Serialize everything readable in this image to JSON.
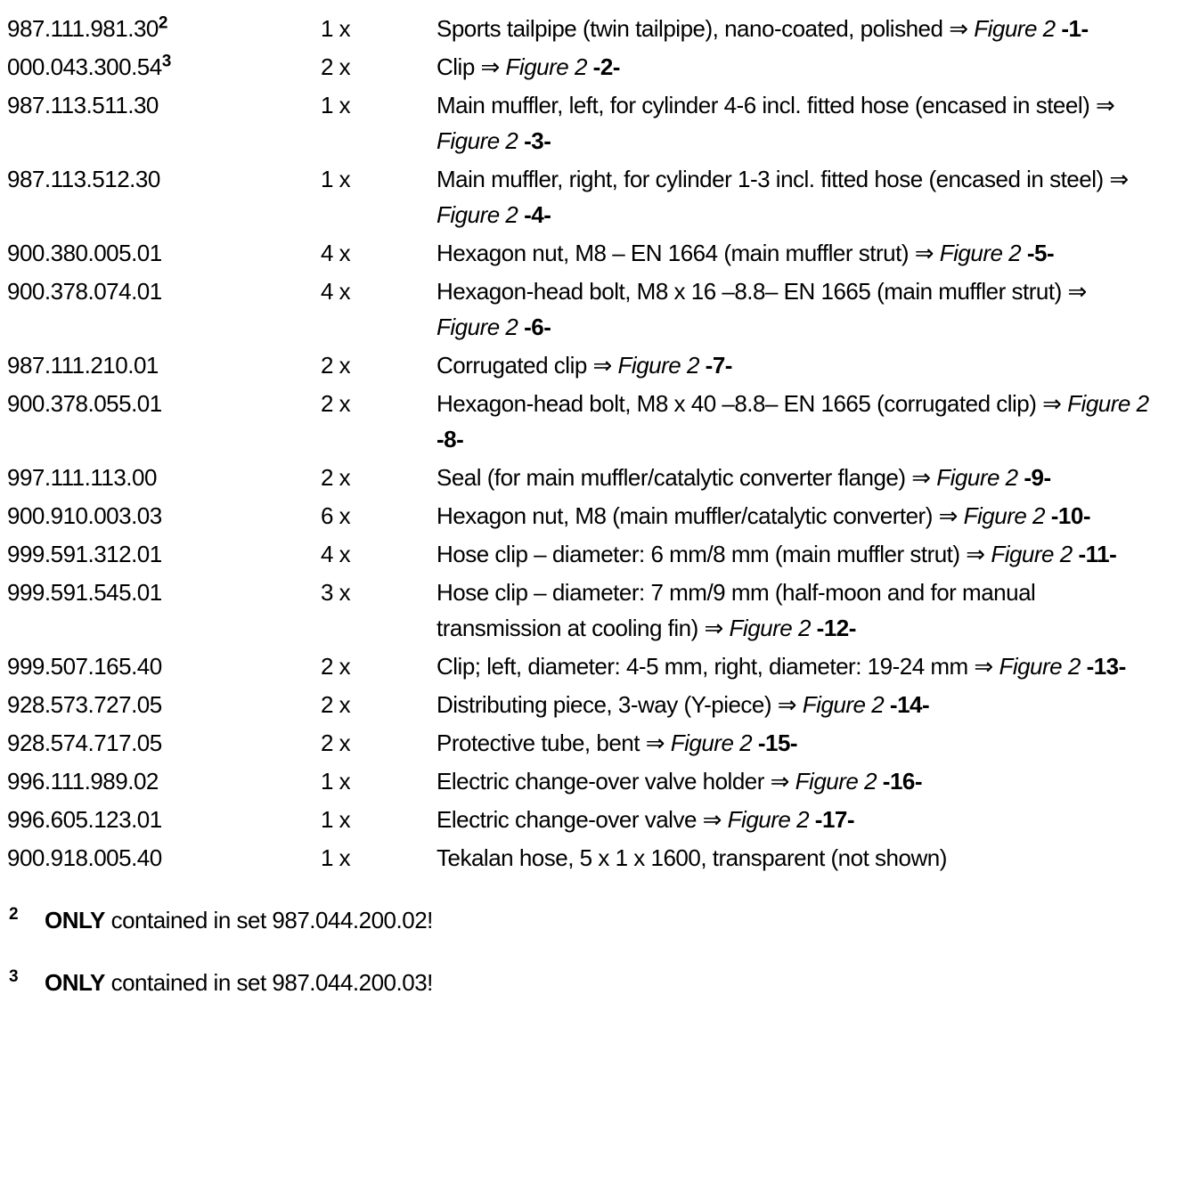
{
  "table": {
    "rows": [
      {
        "part": "987.111.981.30",
        "sup": "2",
        "qty": "1 x",
        "desc": "Sports tailpipe (twin tailpipe), nano-coated, polished",
        "arrow": " ⇒ ",
        "figure": "Figure 2",
        "item": "-1-"
      },
      {
        "part": "000.043.300.54",
        "sup": "3",
        "qty": "2 x",
        "desc": "Clip",
        "arrow": " ⇒ ",
        "figure": "Figure 2",
        "item": "-2-"
      },
      {
        "part": "987.113.511.30",
        "qty": "1 x",
        "desc": "Main muffler, left, for cylinder 4-6 incl. fitted hose (encased in steel)",
        "arrow": " ⇒ ",
        "figure": "Figure 2",
        "item": "-3-"
      },
      {
        "part": "987.113.512.30",
        "qty": "1 x",
        "desc": "Main muffler, right, for cylinder 1-3 incl. fitted hose (encased in steel)",
        "arrow": " ⇒ ",
        "figure": "Figure 2",
        "item": "-4-"
      },
      {
        "part": "900.380.005.01",
        "qty": "4 x",
        "desc": "Hexagon nut, M8 – EN 1664 (main muffler strut)",
        "arrow": " ⇒ ",
        "figure": "Figure 2",
        "item": "-5-"
      },
      {
        "part": "900.378.074.01",
        "qty": "4 x",
        "desc": "Hexagon-head bolt, M8 x 16 –8.8– EN 1665 (main muffler strut)",
        "arrow": " ⇒ ",
        "figure": "Figure 2",
        "item": "-6-"
      },
      {
        "part": "987.111.210.01",
        "qty": "2 x",
        "desc": "Corrugated clip",
        "arrow": " ⇒ ",
        "figure": "Figure 2",
        "item": "-7-"
      },
      {
        "part": "900.378.055.01",
        "qty": "2 x",
        "desc": "Hexagon-head bolt, M8 x 40 –8.8– EN 1665 (corrugated clip)",
        "arrow": " ⇒ ",
        "figure": "Figure 2",
        "item": "-8-"
      },
      {
        "part": "997.111.113.00",
        "qty": "2 x",
        "desc": "Seal (for main muffler/catalytic converter flange)",
        "arrow": " ⇒ ",
        "figure": "Figure 2",
        "item": "-9-"
      },
      {
        "part": "900.910.003.03",
        "qty": "6 x",
        "desc": "Hexagon nut, M8 (main muffler/catalytic converter)",
        "arrow": " ⇒ ",
        "figure": "Figure 2",
        "item": "-10-"
      },
      {
        "part": "999.591.312.01",
        "qty": "4 x",
        "desc": "Hose clip – diameter: 6 mm/8 mm (main muffler strut)",
        "arrow": " ⇒ ",
        "figure": "Figure 2",
        "item": "-11-"
      },
      {
        "part": "999.591.545.01",
        "qty": "3 x",
        "desc": "Hose clip – diameter: 7 mm/9 mm (half-moon and for manual transmission at cooling fin)",
        "arrow": " ⇒ ",
        "figure": "Figure 2",
        "item": "-12-"
      },
      {
        "part": "999.507.165.40",
        "qty": "2 x",
        "desc": "Clip; left, diameter: 4-5 mm, right, diameter: 19-24 mm",
        "arrow": " ⇒ ",
        "figure": "Figure 2",
        "item": "-13-"
      },
      {
        "part": "928.573.727.05",
        "qty": "2 x",
        "desc": "Distributing piece, 3-way (Y-piece)",
        "arrow": " ⇒ ",
        "figure": "Figure 2",
        "item": "-14-"
      },
      {
        "part": "928.574.717.05",
        "qty": "2 x",
        "desc": "Protective tube, bent",
        "arrow": " ⇒ ",
        "figure": "Figure 2",
        "item": "-15-"
      },
      {
        "part": "996.111.989.02",
        "qty": "1 x",
        "desc": "Electric change-over valve holder",
        "arrow": " ⇒ ",
        "figure": "Figure 2",
        "item": "-16-"
      },
      {
        "part": "996.605.123.01",
        "qty": "1 x",
        "desc": "Electric change-over valve",
        "arrow": " ⇒ ",
        "figure": "Figure 2",
        "item": "-17-"
      },
      {
        "part": "900.918.005.40",
        "qty": "1 x",
        "desc": "Tekalan hose, 5 x 1 x 1600, transparent (not shown)"
      }
    ]
  },
  "footnotes": [
    {
      "marker": "2",
      "bold": "ONLY",
      "text": "contained in set 987.044.200.02!"
    },
    {
      "marker": "3",
      "bold": "ONLY",
      "text": "contained in set 987.044.200.03!"
    }
  ]
}
